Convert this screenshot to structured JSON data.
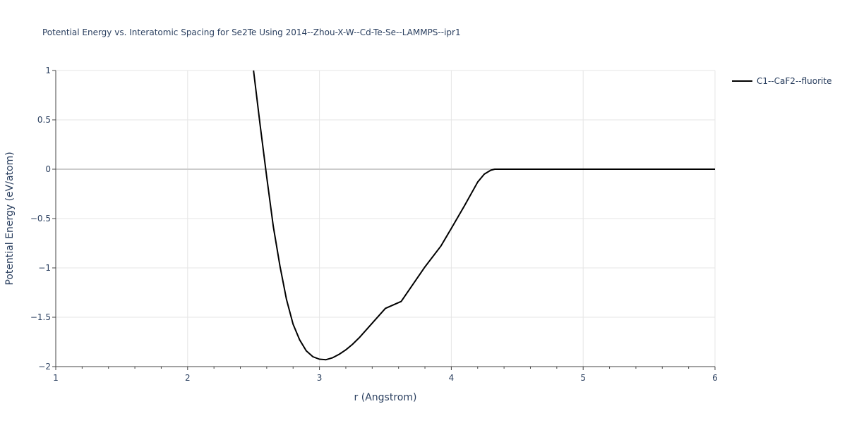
{
  "chart_data": {
    "type": "line",
    "title": "Potential Energy vs. Interatomic Spacing for Se2Te Using 2014--Zhou-X-W--Cd-Te-Se--LAMMPS--ipr1",
    "xlabel": "r (Angstrom)",
    "ylabel": "Potential Energy (eV/atom)",
    "xlim": [
      1,
      6
    ],
    "ylim": [
      -2,
      1
    ],
    "x_ticks": [
      1,
      2,
      3,
      4,
      5,
      6
    ],
    "x_tick_labels": [
      "1",
      "2",
      "3",
      "4",
      "5",
      "6"
    ],
    "y_ticks": [
      -2,
      -1.5,
      -1,
      -0.5,
      0,
      0.5,
      1
    ],
    "y_tick_labels": [
      "−2",
      "−1.5",
      "−1",
      "−0.5",
      "0",
      "0.5",
      "1"
    ],
    "grid": true,
    "legend_position": "top-right",
    "series": [
      {
        "name": "C1--CaF2--fluorite",
        "color": "#000000",
        "x": [
          2.5,
          2.55,
          2.6,
          2.65,
          2.7,
          2.75,
          2.8,
          2.85,
          2.9,
          2.95,
          3.0,
          3.05,
          3.1,
          3.15,
          3.2,
          3.25,
          3.3,
          3.4,
          3.5,
          3.62,
          3.8,
          3.92,
          4.0,
          4.1,
          4.2,
          4.25,
          4.3,
          4.33,
          4.4,
          5.0,
          6.0
        ],
        "y": [
          1.0,
          0.45,
          -0.08,
          -0.58,
          -0.98,
          -1.32,
          -1.57,
          -1.73,
          -1.84,
          -1.9,
          -1.925,
          -1.93,
          -1.91,
          -1.875,
          -1.83,
          -1.775,
          -1.71,
          -1.56,
          -1.41,
          -1.34,
          -0.99,
          -0.78,
          -0.6,
          -0.37,
          -0.13,
          -0.05,
          -0.01,
          0.0,
          0.0,
          0.0,
          0.0
        ]
      }
    ]
  }
}
